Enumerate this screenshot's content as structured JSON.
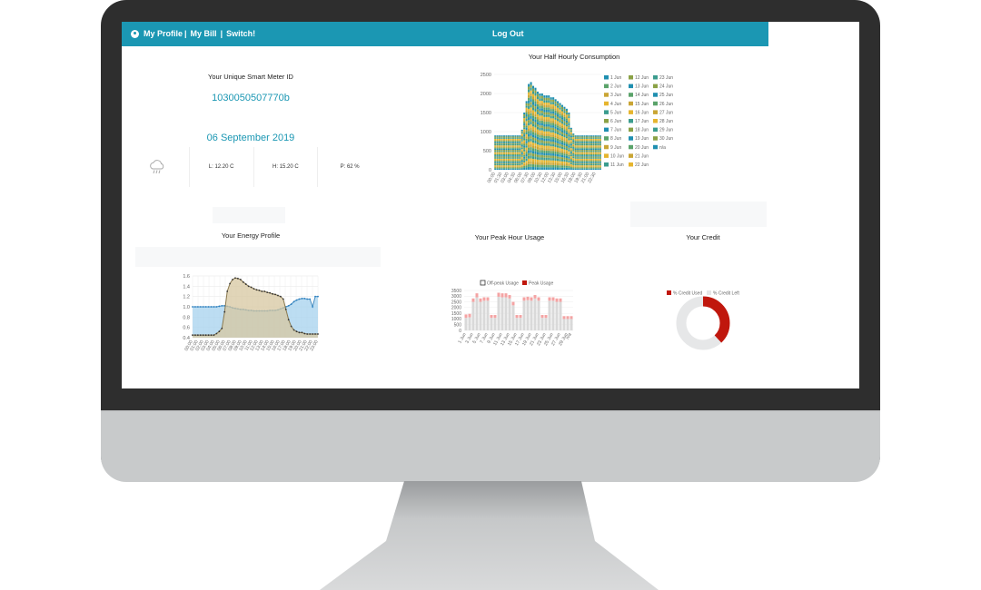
{
  "navbar": {
    "profile_label": "My Profile",
    "bill_label": "My Bill",
    "switch_label": "Switch!",
    "separator": "|",
    "logout_label": "Log Out",
    "accent_color": "#1b97b3"
  },
  "meter": {
    "title": "Your Unique Smart Meter ID",
    "id": "1030050507770b"
  },
  "date": "06 September 2019",
  "weather": {
    "icon": "cloud-rain-icon",
    "low": "L: 12.20 C",
    "high": "H: 15.20 C",
    "precip": "P: 62 %"
  },
  "energy_profile_title": "Your Energy Profile",
  "half_hourly_title": "Your Half Hourly Consumption",
  "peak_title": "Your Peak Hour Usage",
  "credit_title": "Your Credit",
  "chart_data": [
    {
      "id": "half_hourly",
      "type": "bar",
      "stacked": true,
      "title": "Your Half Hourly Consumption",
      "ylim": [
        0,
        2500
      ],
      "yticks": [
        "0",
        "500",
        "1000",
        "1500",
        "2000",
        "2500"
      ],
      "x_tick_labels": [
        "00:00",
        "01:30",
        "03:00",
        "04:30",
        "06:00",
        "07:30",
        "09:00",
        "10:30",
        "12:00",
        "13:30",
        "15:00",
        "16:30",
        "18:00",
        "19:30",
        "21:00",
        "22:30"
      ],
      "totals": [
        900,
        900,
        900,
        900,
        900,
        900,
        900,
        900,
        900,
        900,
        900,
        900,
        1050,
        1500,
        1800,
        2250,
        2300,
        2200,
        2150,
        2050,
        2000,
        2000,
        1950,
        1950,
        1950,
        1900,
        1900,
        1850,
        1800,
        1750,
        1700,
        1650,
        1600,
        1500,
        1100,
        950,
        900,
        900,
        900,
        900,
        900,
        900,
        900,
        900,
        900,
        900,
        900,
        900
      ],
      "series_count": 31,
      "legend": [
        "1 Jun",
        "2 Jun",
        "3 Jun",
        "4 Jun",
        "5 Jun",
        "6 Jun",
        "7 Jun",
        "8 Jun",
        "9 Jun",
        "10 Jun",
        "11 Jun",
        "12 Jun",
        "13 Jun",
        "14 Jun",
        "15 Jun",
        "16 Jun",
        "17 Jun",
        "18 Jun",
        "19 Jun",
        "20 Jun",
        "21 Jun",
        "22 Jun",
        "23 Jun",
        "24 Jun",
        "25 Jun",
        "26 Jun",
        "27 Jun",
        "28 Jun",
        "29 Jun",
        "30 Jun",
        "n/a"
      ],
      "colors": [
        "#1f8fb0",
        "#5aa36a",
        "#c9a534",
        "#e6b52e",
        "#3b9c8e",
        "#8aa145"
      ]
    },
    {
      "id": "energy_profile",
      "type": "line",
      "title": "Your Energy Profile",
      "ylim": [
        0.4,
        1.6
      ],
      "yticks": [
        "0.4",
        "0.6",
        "0.8",
        "1.0",
        "1.2",
        "1.4",
        "1.6"
      ],
      "x_tick_labels": [
        "00:00",
        "01:00",
        "02:00",
        "03:00",
        "04:00",
        "05:00",
        "06:00",
        "07:00",
        "08:00",
        "09:00",
        "10:00",
        "11:00",
        "12:00",
        "13:00",
        "14:00",
        "15:00",
        "16:00",
        "17:00",
        "18:00",
        "19:00",
        "20:00",
        "21:00",
        "22:00",
        "23:00"
      ],
      "series": [
        {
          "color": "#8b7a4f",
          "fill": "#d7c7a0",
          "values": [
            0.45,
            0.45,
            0.45,
            0.45,
            0.45,
            0.45,
            0.45,
            0.45,
            0.45,
            0.48,
            0.52,
            0.58,
            0.9,
            1.3,
            1.45,
            1.53,
            1.56,
            1.55,
            1.53,
            1.48,
            1.44,
            1.4,
            1.38,
            1.35,
            1.33,
            1.32,
            1.3,
            1.3,
            1.28,
            1.27,
            1.25,
            1.24,
            1.22,
            1.2,
            1.15,
            0.95,
            0.75,
            0.62,
            0.55,
            0.52,
            0.5,
            0.5,
            0.48,
            0.47,
            0.47,
            0.47,
            0.47,
            0.47
          ]
        },
        {
          "color": "#4a90c2",
          "fill": "#a6d1ee",
          "values": [
            1.0,
            1.0,
            1.0,
            1.0,
            1.0,
            1.0,
            1.0,
            1.0,
            1.0,
            1.0,
            1.01,
            1.02,
            1.02,
            1.01,
            1.0,
            0.98,
            0.97,
            0.96,
            0.95,
            0.95,
            0.94,
            0.93,
            0.93,
            0.92,
            0.92,
            0.92,
            0.92,
            0.92,
            0.92,
            0.93,
            0.93,
            0.93,
            0.94,
            0.96,
            0.98,
            1.0,
            1.02,
            1.05,
            1.1,
            1.13,
            1.15,
            1.16,
            1.16,
            1.15,
            1.15,
            1.0,
            1.2,
            1.2
          ]
        }
      ]
    },
    {
      "id": "peak_usage",
      "type": "bar",
      "title": "Your Peak Hour Usage",
      "ylim": [
        0,
        3500
      ],
      "yticks": [
        "0",
        "500",
        "1000",
        "1500",
        "2000",
        "2500",
        "3000",
        "3500"
      ],
      "legend": [
        "Off-peak Usage",
        "Peak Usage"
      ],
      "categories": [
        "1 Jun",
        "2 Jun",
        "3 Jun",
        "4 Jun",
        "5 Jun",
        "6 Jun",
        "7 Jun",
        "8 Jun",
        "9 Jun",
        "10 Jun",
        "11 Jun",
        "12 Jun",
        "13 Jun",
        "14 Jun",
        "15 Jun",
        "16 Jun",
        "17 Jun",
        "18 Jun",
        "19 Jun",
        "20 Jun",
        "21 Jun",
        "22 Jun",
        "23 Jun",
        "24 Jun",
        "25 Jun",
        "26 Jun",
        "27 Jun",
        "28 Jun",
        "29 Jun",
        "n/a"
      ],
      "x_tick_labels": [
        "1 Jun",
        "3 Jun",
        "5 Jun",
        "7 Jun",
        "9 Jun",
        "11 Jun",
        "13 Jun",
        "15 Jun",
        "17 Jun",
        "19 Jun",
        "21 Jun",
        "23 Jun",
        "25 Jun",
        "27 Jun",
        "29 Jun",
        "n/a"
      ],
      "series": [
        {
          "name": "Off-peak Usage",
          "color": "#d9d9d9",
          "values": [
            1100,
            1150,
            2500,
            2900,
            2500,
            2600,
            2600,
            1100,
            1100,
            2950,
            2900,
            2900,
            2800,
            2200,
            1100,
            1100,
            2600,
            2650,
            2600,
            2800,
            2600,
            1100,
            1100,
            2600,
            2600,
            2500,
            2500,
            1000,
            1000,
            1000
          ]
        },
        {
          "name": "Peak Usage",
          "color": "#f4a3a3",
          "values": [
            300,
            300,
            300,
            350,
            300,
            300,
            300,
            250,
            250,
            350,
            350,
            350,
            300,
            300,
            250,
            250,
            300,
            300,
            300,
            300,
            300,
            250,
            250,
            300,
            300,
            300,
            300,
            250,
            250,
            250
          ]
        }
      ]
    },
    {
      "id": "credit",
      "type": "pie",
      "doughnut": true,
      "title": "Your Credit",
      "legend": [
        "% Credit Used",
        "% Credit Left"
      ],
      "values": [
        38,
        62
      ],
      "colors": [
        "#c0170d",
        "#e6e7e8"
      ]
    }
  ]
}
